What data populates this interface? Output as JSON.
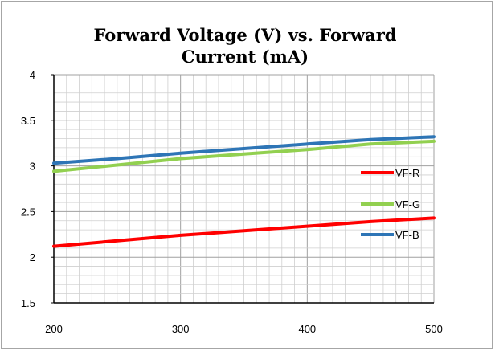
{
  "chart_data": {
    "type": "line",
    "title_lines": [
      "Forward Voltage (V) vs. Forward",
      "Current (mA)"
    ],
    "xlabel": "",
    "ylabel": "",
    "xlim": [
      200,
      500
    ],
    "ylim": [
      1.5,
      4
    ],
    "x_ticks": [
      200,
      300,
      400,
      500
    ],
    "y_ticks": [
      "1.5",
      "2",
      "2.5",
      "3",
      "3.5",
      "4"
    ],
    "grid": true,
    "legend_position": "right",
    "x": [
      200,
      250,
      300,
      350,
      400,
      450,
      500
    ],
    "series": [
      {
        "name": "VF-R",
        "color": "#ff0000",
        "values": [
          2.12,
          2.18,
          2.24,
          2.29,
          2.34,
          2.39,
          2.43
        ]
      },
      {
        "name": "VF-G",
        "color": "#92d050",
        "values": [
          2.94,
          3.01,
          3.08,
          3.13,
          3.18,
          3.24,
          3.27
        ]
      },
      {
        "name": "VF-B",
        "color": "#2e75b6",
        "values": [
          3.03,
          3.08,
          3.14,
          3.19,
          3.24,
          3.29,
          3.32
        ]
      }
    ]
  }
}
